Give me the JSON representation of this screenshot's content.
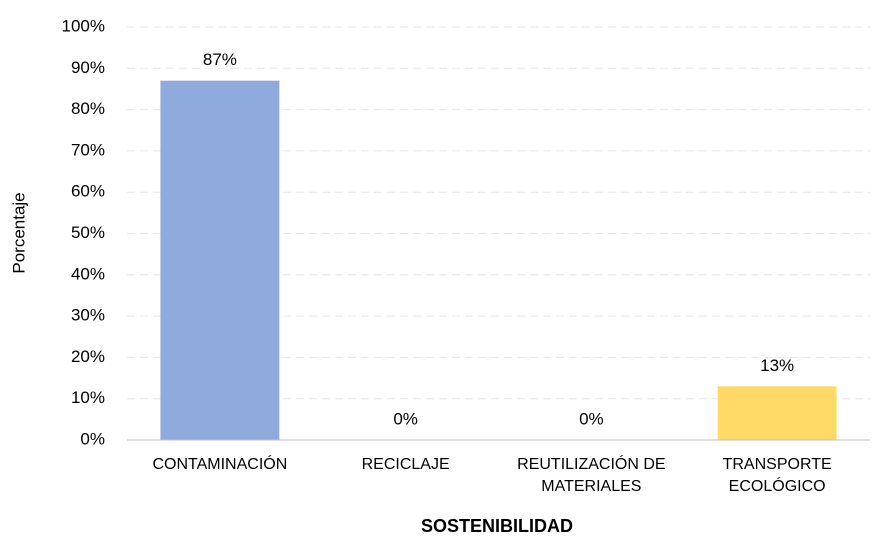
{
  "chart_data": {
    "type": "bar",
    "x_label": "SOSTENIBILIDAD",
    "y_label": "Porcentaje",
    "categories": [
      "CONTAMINACIÓN",
      "RECICLAJE",
      "REUTILIZACIÓN DE MATERIALES",
      "TRANSPORTE ECOLÓGICO"
    ],
    "values": [
      87,
      0,
      0,
      13
    ],
    "value_labels": [
      "87%",
      "0%",
      "0%",
      "13%"
    ],
    "colors": [
      "#8faadc",
      "#a9d18e",
      "#f4b183",
      "#ffd966"
    ],
    "ylim": [
      0,
      100
    ],
    "yticks": [
      {
        "value": 0,
        "label": "0%"
      },
      {
        "value": 10,
        "label": "10%"
      },
      {
        "value": 20,
        "label": "20%"
      },
      {
        "value": 30,
        "label": "30%"
      },
      {
        "value": 40,
        "label": "40%"
      },
      {
        "value": 50,
        "label": "50%"
      },
      {
        "value": 60,
        "label": "60%"
      },
      {
        "value": 70,
        "label": "70%"
      },
      {
        "value": 80,
        "label": "80%"
      },
      {
        "value": 90,
        "label": "90%"
      },
      {
        "value": 100,
        "label": "100%"
      }
    ],
    "grid": true
  }
}
